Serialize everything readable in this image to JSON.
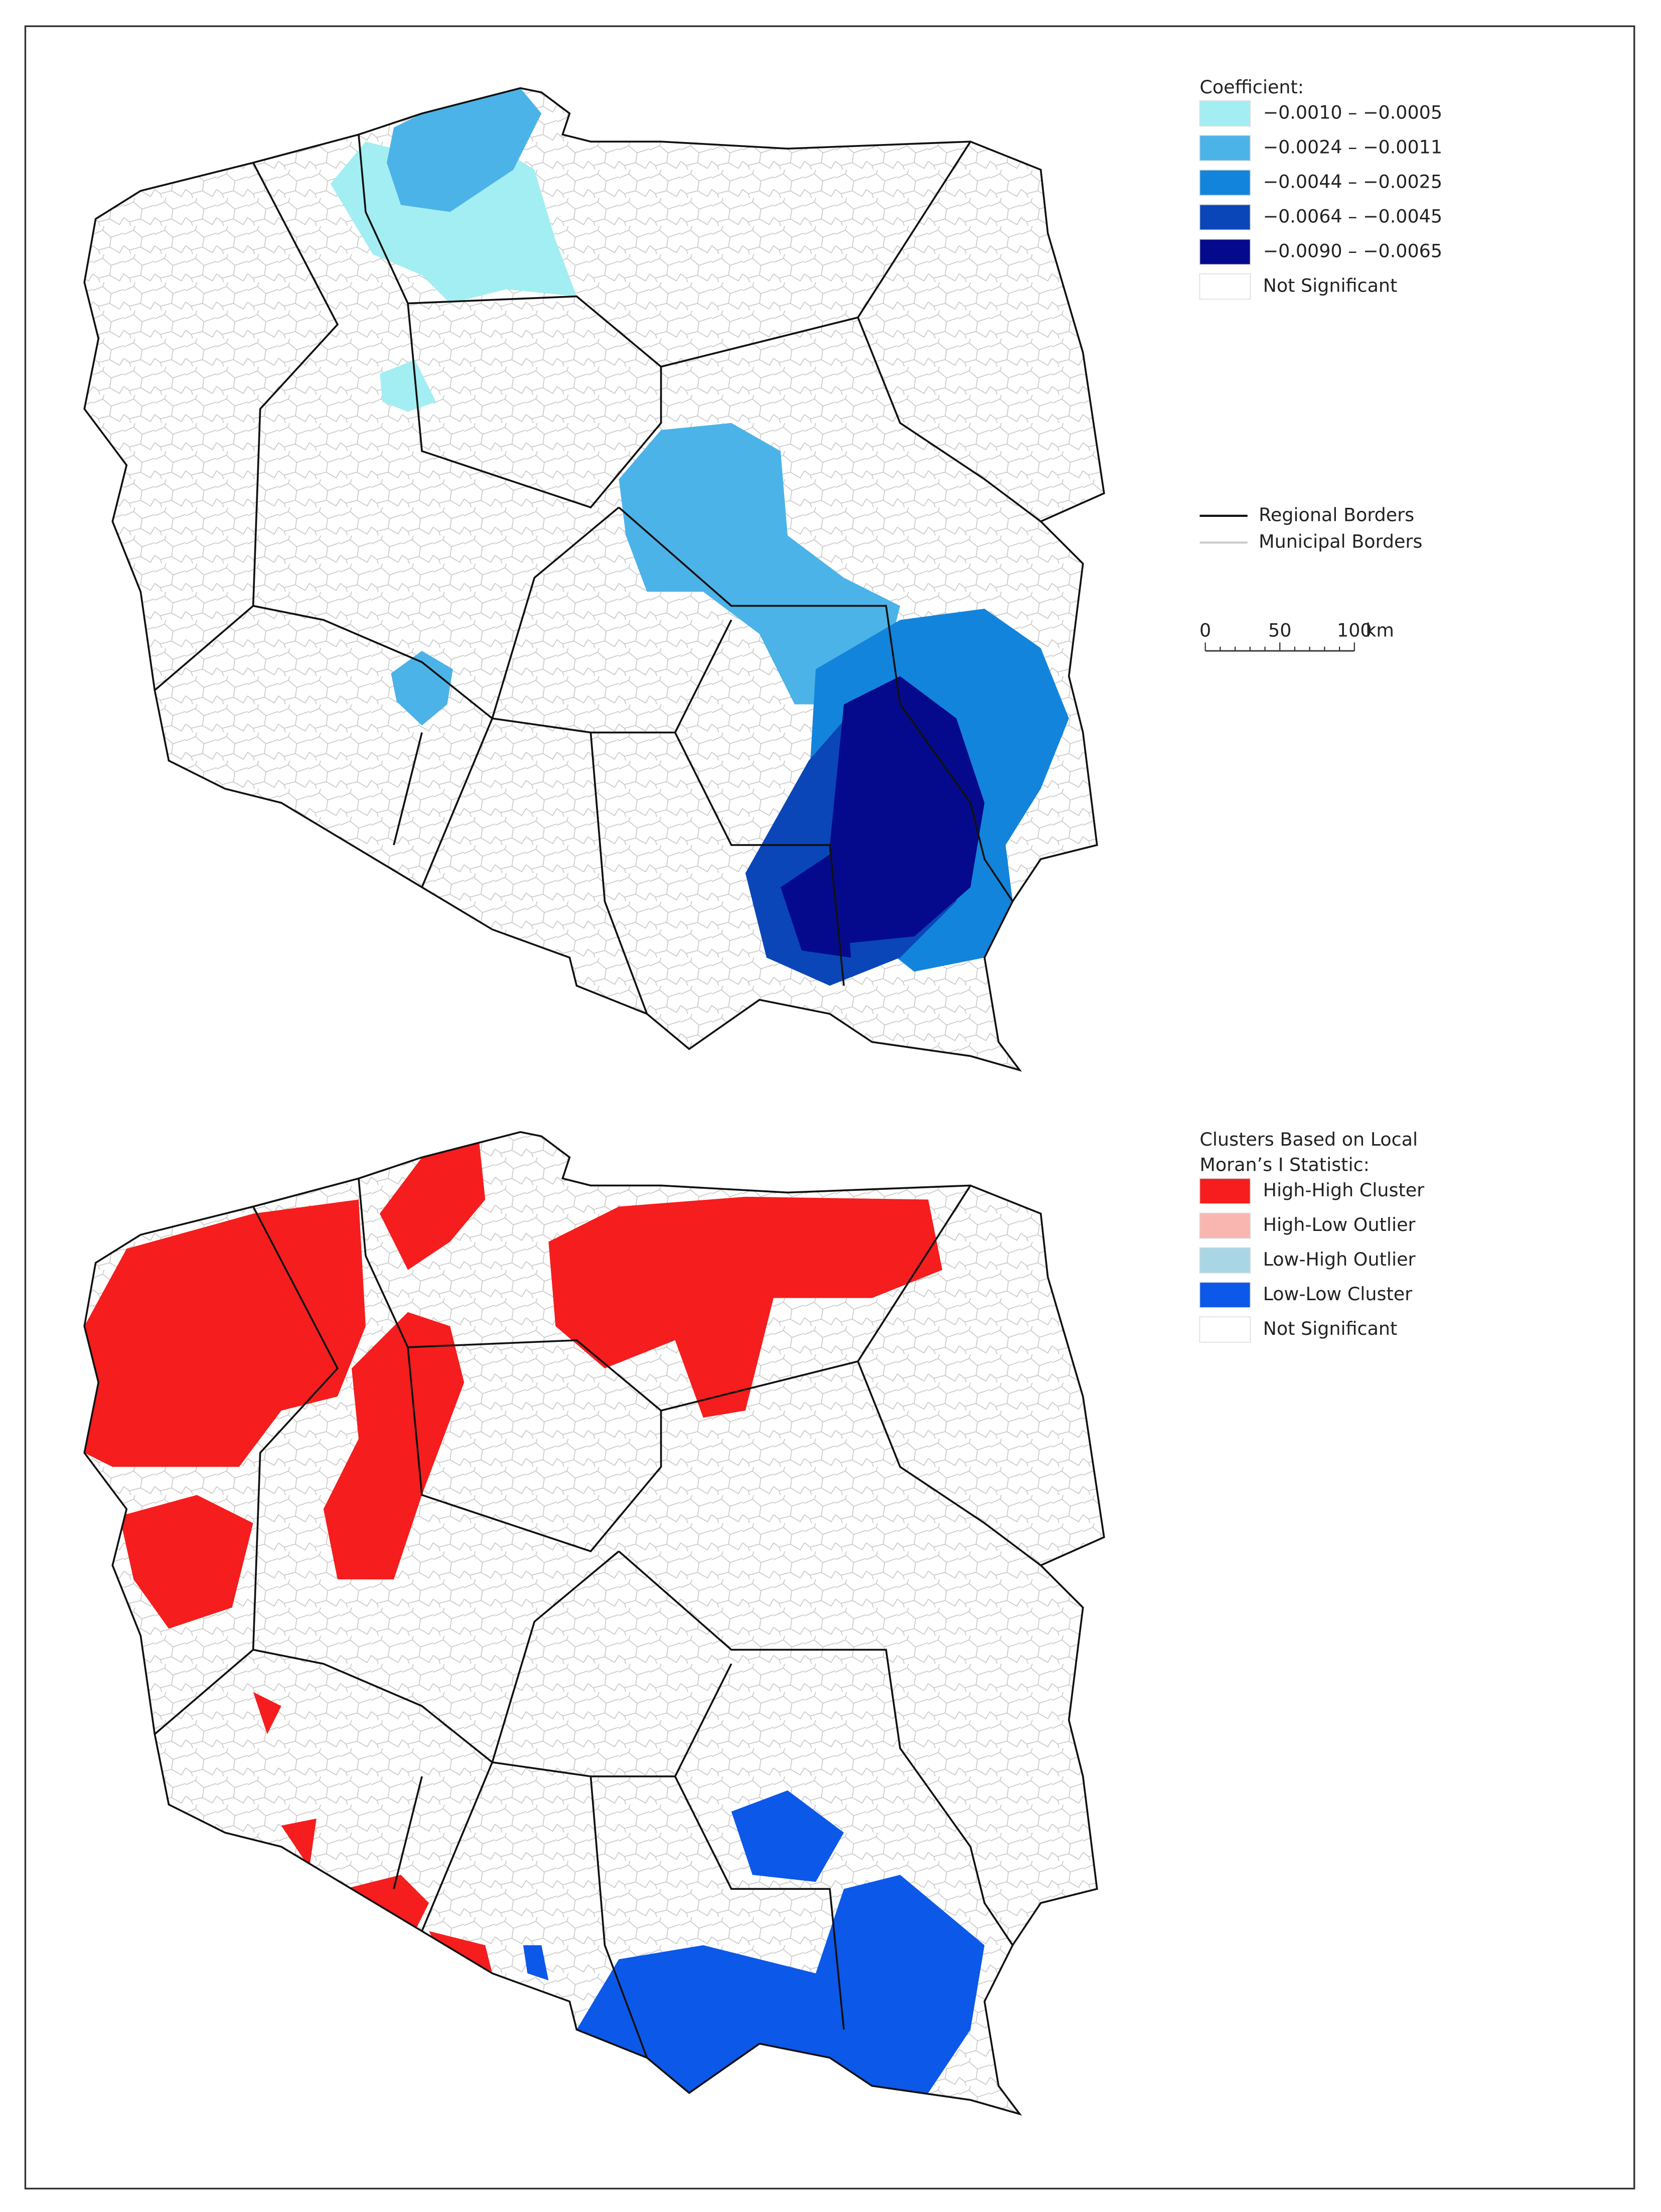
{
  "maps": [
    {
      "legend": {
        "title_lines": [
          "Coefficient:"
        ],
        "items": [
          {
            "label": "−0.0010 – −0.0005",
            "color": "#a3eef2"
          },
          {
            "label": "−0.0024 – −0.0011",
            "color": "#4cb3e8"
          },
          {
            "label": "−0.0044 – −0.0025",
            "color": "#1384dc"
          },
          {
            "label": "−0.0064 – −0.0045",
            "color": "#0a46b8"
          },
          {
            "label": "−0.0090 – −0.0065",
            "color": "#050a8c"
          },
          {
            "label": "Not Significant",
            "color": "#ffffff"
          }
        ]
      },
      "line_legend": [
        {
          "label": "Regional Borders",
          "color": "#111111"
        },
        {
          "label": "Municipal Borders",
          "color": "#cccccc"
        }
      ],
      "scale_bar": {
        "labels": [
          "0",
          "50",
          "100"
        ],
        "unit": "km"
      }
    },
    {
      "legend": {
        "title_lines": [
          "Clusters Based on Local",
          "Moran’s I Statistic:"
        ],
        "items": [
          {
            "label": "High-High Cluster",
            "color": "#f51d1d"
          },
          {
            "label": "High-Low Outlier",
            "color": "#f9b6b0"
          },
          {
            "label": "Low-High Outlier",
            "color": "#a9d6e4"
          },
          {
            "label": "Low-Low Cluster",
            "color": "#0c58e8"
          },
          {
            "label": "Not Significant",
            "color": "#ffffff"
          }
        ]
      }
    }
  ]
}
